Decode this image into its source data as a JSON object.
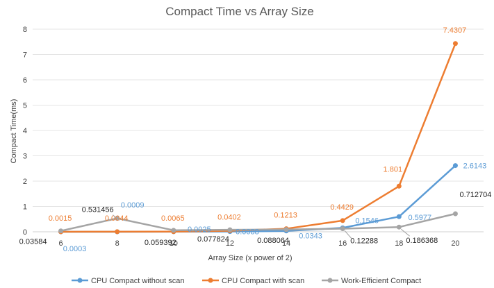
{
  "chart_data": {
    "type": "line",
    "title": "Compact Time vs Array Size",
    "xlabel": "Array Size (x power of 2)",
    "ylabel": "Compact Time(ms)",
    "categories": [
      "6",
      "8",
      "10",
      "12",
      "14",
      "16",
      "18",
      "20"
    ],
    "y_ticks": [
      "0",
      "1",
      "2",
      "3",
      "4",
      "5",
      "6",
      "7",
      "8"
    ],
    "ylim": [
      0,
      8
    ],
    "grid": true,
    "legend_position": "bottom",
    "series": [
      {
        "name": "CPU Compact without scan",
        "color": "#5B9BD5",
        "values": [
          0.0003,
          0.0009,
          0.0025,
          0.0088,
          0.0343,
          0.1546,
          0.5977,
          2.6143
        ],
        "labels": [
          "0.0003",
          "0.0009",
          "0.0025",
          "0.0088",
          "0.0343",
          "0.1546",
          "0.5977",
          "2.6143"
        ]
      },
      {
        "name": "CPU Compact with scan",
        "color": "#ED7D31",
        "values": [
          0.0015,
          0.0044,
          0.0065,
          0.0402,
          0.1213,
          0.4429,
          1.801,
          7.4307
        ],
        "labels": [
          "0.0015",
          "0.0044",
          "0.0065",
          "0.0402",
          "0.1213",
          "0.4429",
          "1.801",
          "7.4307"
        ]
      },
      {
        "name": "Work-Efficient Compact",
        "color": "#A5A5A5",
        "label_color": "#262626",
        "values": [
          0.03584,
          0.531456,
          0.059392,
          0.077824,
          0.088064,
          0.12288,
          0.186368,
          0.712704
        ],
        "labels": [
          "0.03584",
          "0.531456",
          "0.059392",
          "0.077824",
          "0.088064",
          "0.12288",
          "0.186368",
          "0.712704"
        ]
      }
    ]
  }
}
